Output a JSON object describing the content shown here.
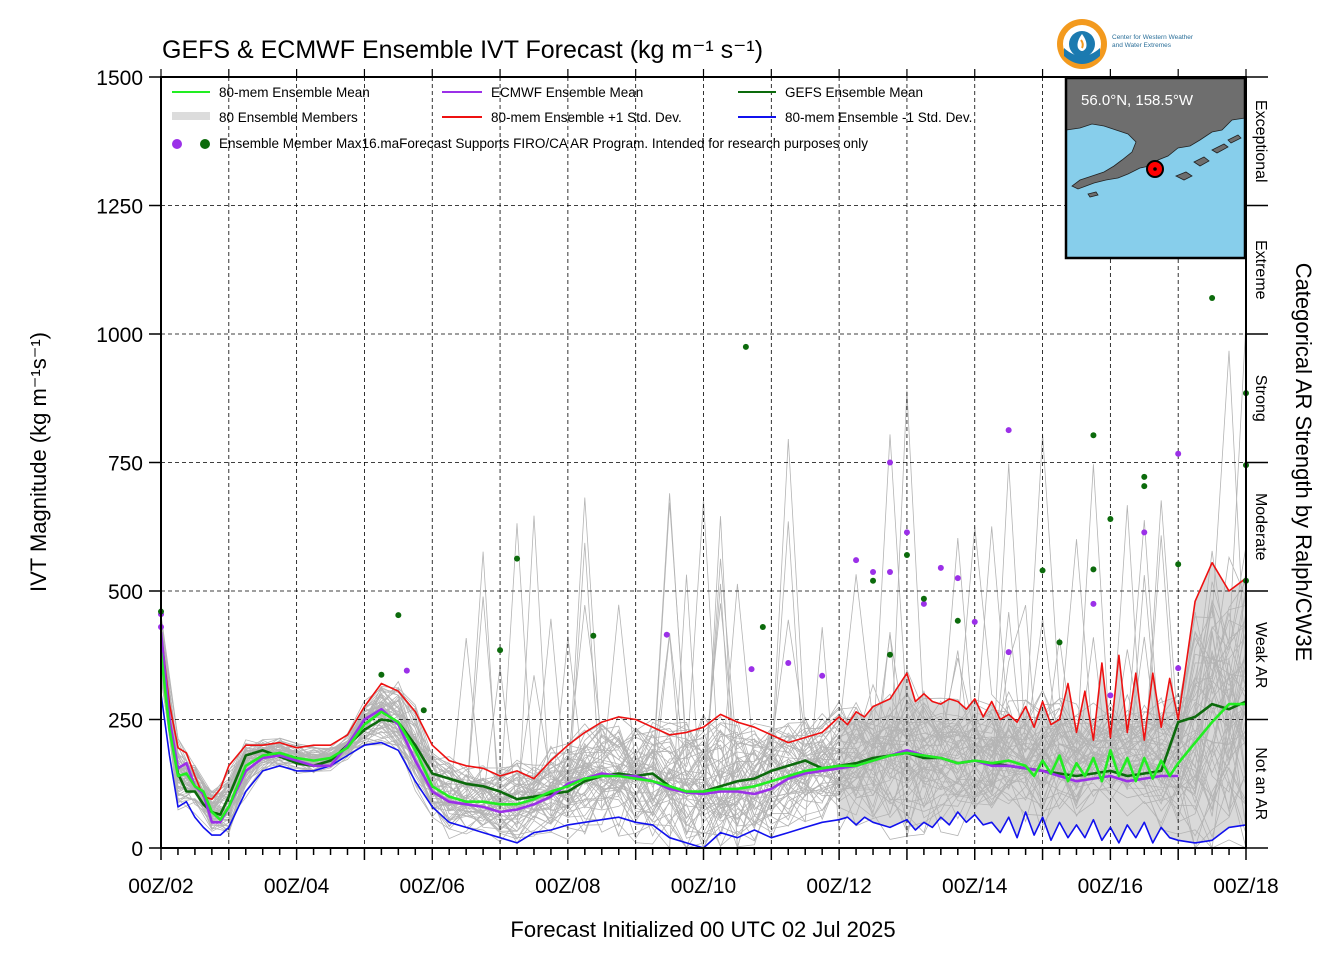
{
  "chart_data": {
    "type": "line",
    "title": "GEFS & ECMWF Ensemble IVT Forecast (kg m⁻¹ s⁻¹)",
    "xlabel": "Forecast Initialized 00 UTC 02 Jul 2025",
    "ylabel": "IVT Magnitude (kg m⁻¹s⁻¹)",
    "right_label": "Categorical AR Strength by Ralph/CW3E",
    "x_unit": "forecast hour",
    "xlim": [
      0,
      384
    ],
    "ylim": [
      0,
      1500
    ],
    "grid": true,
    "legend_placement": "top-left",
    "x_ticks": [
      {
        "hour": 0,
        "label": "00Z/02"
      },
      {
        "hour": 48,
        "label": "00Z/04"
      },
      {
        "hour": 96,
        "label": "00Z/06"
      },
      {
        "hour": 144,
        "label": "00Z/08"
      },
      {
        "hour": 192,
        "label": "00Z/10"
      },
      {
        "hour": 240,
        "label": "00Z/12"
      },
      {
        "hour": 288,
        "label": "00Z/14"
      },
      {
        "hour": 336,
        "label": "00Z/16"
      },
      {
        "hour": 384,
        "label": "00Z/18"
      }
    ],
    "y_ticks": [
      0,
      250,
      500,
      750,
      1000,
      1250,
      1500
    ],
    "categories": [
      {
        "label": "Not an AR",
        "from": 0,
        "to": 250
      },
      {
        "label": "Weak AR",
        "from": 250,
        "to": 500
      },
      {
        "label": "Moderate",
        "from": 500,
        "to": 750
      },
      {
        "label": "Strong",
        "from": 750,
        "to": 1000
      },
      {
        "label": "Extreme",
        "from": 1000,
        "to": 1250
      },
      {
        "label": "Exceptional",
        "from": 1250,
        "to": 1500
      }
    ],
    "legend": {
      "mean80": "80-mem Ensemble Mean",
      "members": "80 Ensemble Members",
      "dots": "Ensemble Member Max",
      "ecmwf": "ECMWF Ensemble Mean",
      "plus": "80-mem Ensemble +1 Std. Dev.",
      "gefs": "GEFS Ensemble Mean",
      "minus": "80-mem Ensemble -1 Std. Dev.",
      "note": "16.maForecast Supports FIRO/CA AR Program. Intended for research purposes only"
    },
    "series": [
      {
        "name": "80-mem Ensemble Mean",
        "color": "#22ee22",
        "x": [
          0,
          3,
          6,
          9,
          12,
          15,
          18,
          21,
          24,
          30,
          36,
          42,
          48,
          54,
          60,
          66,
          72,
          78,
          84,
          90,
          96,
          102,
          108,
          114,
          120,
          126,
          132,
          138,
          144,
          150,
          156,
          162,
          168,
          174,
          180,
          186,
          192,
          198,
          204,
          210,
          216,
          222,
          228,
          234,
          240,
          246,
          252,
          258,
          264,
          270,
          276,
          282,
          288,
          294,
          300,
          306,
          309,
          312,
          315,
          318,
          321,
          324,
          327,
          330,
          333,
          336,
          339,
          342,
          345,
          348,
          351,
          354,
          357,
          360,
          372,
          378,
          384
        ],
        "y": [
          380,
          230,
          140,
          145,
          120,
          110,
          70,
          55,
          80,
          160,
          180,
          185,
          175,
          170,
          175,
          195,
          240,
          265,
          245,
          190,
          120,
          100,
          90,
          90,
          85,
          85,
          95,
          110,
          120,
          135,
          140,
          140,
          135,
          130,
          120,
          110,
          110,
          115,
          115,
          120,
          130,
          140,
          150,
          155,
          160,
          160,
          170,
          180,
          185,
          180,
          175,
          165,
          170,
          165,
          170,
          160,
          140,
          170,
          145,
          180,
          130,
          165,
          140,
          175,
          130,
          190,
          140,
          175,
          130,
          175,
          135,
          170,
          140,
          165,
          245,
          280,
          280
        ]
      },
      {
        "name": "ECMWF Ensemble Mean",
        "color": "#9b30e8",
        "x": [
          0,
          3,
          6,
          9,
          12,
          15,
          18,
          21,
          24,
          30,
          36,
          42,
          48,
          54,
          60,
          66,
          72,
          78,
          84,
          90,
          96,
          102,
          108,
          114,
          120,
          126,
          132,
          138,
          144,
          150,
          156,
          162,
          168,
          174,
          180,
          186,
          192,
          198,
          204,
          210,
          216,
          222,
          228,
          234,
          240,
          246,
          252,
          258,
          264,
          270,
          276,
          282,
          288,
          294,
          300,
          306,
          312,
          318,
          324,
          330,
          336,
          342,
          348,
          354,
          360
        ],
        "y": [
          420,
          250,
          155,
          165,
          120,
          105,
          50,
          50,
          80,
          150,
          175,
          180,
          170,
          160,
          160,
          200,
          250,
          270,
          240,
          170,
          110,
          90,
          85,
          80,
          70,
          75,
          85,
          100,
          125,
          135,
          145,
          140,
          140,
          130,
          115,
          108,
          105,
          110,
          110,
          105,
          115,
          135,
          145,
          150,
          155,
          160,
          170,
          180,
          190,
          180,
          175,
          165,
          170,
          160,
          160,
          155,
          150,
          140,
          130,
          135,
          140,
          130,
          135,
          140,
          140
        ]
      },
      {
        "name": "GEFS Ensemble Mean",
        "color": "#0c6b0c",
        "x": [
          0,
          3,
          6,
          9,
          12,
          15,
          18,
          21,
          24,
          30,
          36,
          42,
          48,
          54,
          60,
          66,
          72,
          78,
          84,
          90,
          96,
          102,
          108,
          114,
          120,
          126,
          132,
          138,
          144,
          150,
          156,
          162,
          168,
          174,
          180,
          186,
          192,
          198,
          204,
          210,
          216,
          222,
          228,
          234,
          240,
          246,
          252,
          258,
          264,
          270,
          276,
          282,
          288,
          294,
          300,
          306,
          312,
          318,
          324,
          330,
          336,
          342,
          348,
          354,
          360,
          366,
          372,
          378,
          384
        ],
        "y": [
          400,
          235,
          145,
          110,
          110,
          85,
          70,
          65,
          100,
          180,
          190,
          178,
          165,
          160,
          170,
          200,
          230,
          250,
          245,
          200,
          145,
          135,
          125,
          120,
          110,
          95,
          100,
          105,
          110,
          130,
          140,
          145,
          140,
          145,
          120,
          108,
          110,
          120,
          130,
          135,
          150,
          160,
          170,
          155,
          160,
          165,
          175,
          180,
          185,
          175,
          175,
          165,
          170,
          165,
          160,
          155,
          150,
          145,
          140,
          145,
          150,
          140,
          145,
          150,
          245,
          255,
          280,
          270,
          285
        ]
      },
      {
        "name": "80-mem Ensemble +1 Std. Dev.",
        "color": "#ee1111",
        "x": [
          0,
          3,
          6,
          9,
          12,
          15,
          18,
          21,
          24,
          30,
          36,
          42,
          48,
          54,
          60,
          66,
          72,
          78,
          84,
          90,
          96,
          102,
          108,
          114,
          120,
          126,
          132,
          138,
          144,
          150,
          156,
          162,
          168,
          174,
          180,
          186,
          192,
          198,
          204,
          210,
          216,
          222,
          228,
          234,
          240,
          243,
          246,
          249,
          252,
          258,
          264,
          267,
          270,
          273,
          276,
          279,
          282,
          285,
          288,
          291,
          294,
          297,
          300,
          303,
          306,
          309,
          312,
          315,
          318,
          321,
          324,
          327,
          330,
          333,
          336,
          339,
          342,
          345,
          348,
          351,
          354,
          357,
          360,
          366,
          372,
          378,
          384
        ],
        "y": [
          420,
          280,
          195,
          185,
          140,
          100,
          95,
          115,
          160,
          200,
          200,
          205,
          195,
          200,
          200,
          220,
          275,
          320,
          305,
          265,
          200,
          170,
          160,
          155,
          140,
          150,
          135,
          170,
          200,
          225,
          245,
          255,
          250,
          235,
          220,
          225,
          235,
          260,
          245,
          235,
          220,
          205,
          215,
          225,
          255,
          240,
          265,
          255,
          275,
          290,
          340,
          285,
          300,
          285,
          280,
          290,
          285,
          270,
          290,
          255,
          285,
          250,
          260,
          245,
          275,
          235,
          285,
          240,
          250,
          320,
          225,
          305,
          210,
          360,
          215,
          375,
          225,
          340,
          210,
          340,
          235,
          330,
          250,
          480,
          555,
          500,
          525
        ]
      },
      {
        "name": "80-mem Ensemble -1 Std. Dev.",
        "color": "#1111ee",
        "x": [
          0,
          3,
          6,
          9,
          12,
          15,
          18,
          21,
          24,
          30,
          36,
          42,
          48,
          54,
          60,
          66,
          72,
          78,
          84,
          90,
          96,
          102,
          108,
          114,
          120,
          126,
          132,
          138,
          144,
          150,
          156,
          162,
          168,
          174,
          180,
          186,
          192,
          198,
          204,
          210,
          216,
          222,
          228,
          234,
          240,
          243,
          246,
          249,
          252,
          258,
          264,
          267,
          270,
          273,
          276,
          279,
          282,
          285,
          288,
          291,
          294,
          297,
          300,
          303,
          306,
          309,
          312,
          315,
          318,
          321,
          324,
          327,
          330,
          333,
          336,
          339,
          342,
          345,
          348,
          351,
          354,
          357,
          360,
          366,
          372,
          378,
          384
        ],
        "y": [
          300,
          180,
          80,
          90,
          60,
          40,
          25,
          25,
          40,
          110,
          150,
          160,
          150,
          150,
          160,
          180,
          200,
          205,
          190,
          130,
          80,
          50,
          40,
          30,
          20,
          10,
          30,
          35,
          45,
          50,
          55,
          60,
          50,
          45,
          20,
          10,
          0,
          30,
          20,
          35,
          20,
          30,
          40,
          50,
          55,
          60,
          45,
          60,
          50,
          40,
          55,
          35,
          50,
          40,
          60,
          45,
          70,
          50,
          65,
          45,
          50,
          30,
          60,
          20,
          70,
          25,
          60,
          15,
          50,
          20,
          45,
          20,
          55,
          15,
          40,
          10,
          45,
          20,
          50,
          10,
          40,
          20,
          15,
          10,
          15,
          40,
          45
        ]
      }
    ],
    "member_max_ecmwf": [
      {
        "x": 0,
        "y": 455
      },
      {
        "x": 0,
        "y": 430
      },
      {
        "x": 87,
        "y": 345
      },
      {
        "x": 179,
        "y": 415
      },
      {
        "x": 209,
        "y": 348
      },
      {
        "x": 222,
        "y": 360
      },
      {
        "x": 234,
        "y": 335
      },
      {
        "x": 246,
        "y": 560
      },
      {
        "x": 252,
        "y": 537
      },
      {
        "x": 258,
        "y": 537
      },
      {
        "x": 258,
        "y": 750
      },
      {
        "x": 264,
        "y": 614
      },
      {
        "x": 270,
        "y": 475
      },
      {
        "x": 276,
        "y": 545
      },
      {
        "x": 282,
        "y": 525
      },
      {
        "x": 288,
        "y": 440
      },
      {
        "x": 300,
        "y": 813
      },
      {
        "x": 300,
        "y": 381
      },
      {
        "x": 330,
        "y": 475
      },
      {
        "x": 336,
        "y": 297
      },
      {
        "x": 348,
        "y": 614
      },
      {
        "x": 360,
        "y": 767
      },
      {
        "x": 360,
        "y": 350
      }
    ],
    "member_max_gefs": [
      {
        "x": 0,
        "y": 460
      },
      {
        "x": 78,
        "y": 337
      },
      {
        "x": 84,
        "y": 453
      },
      {
        "x": 93,
        "y": 268
      },
      {
        "x": 120,
        "y": 385
      },
      {
        "x": 126,
        "y": 563
      },
      {
        "x": 153,
        "y": 413
      },
      {
        "x": 207,
        "y": 975
      },
      {
        "x": 213,
        "y": 430
      },
      {
        "x": 252,
        "y": 520
      },
      {
        "x": 258,
        "y": 376
      },
      {
        "x": 264,
        "y": 570
      },
      {
        "x": 270,
        "y": 485
      },
      {
        "x": 282,
        "y": 442
      },
      {
        "x": 312,
        "y": 540
      },
      {
        "x": 318,
        "y": 400
      },
      {
        "x": 330,
        "y": 542
      },
      {
        "x": 330,
        "y": 803
      },
      {
        "x": 336,
        "y": 640
      },
      {
        "x": 348,
        "y": 722
      },
      {
        "x": 348,
        "y": 704
      },
      {
        "x": 360,
        "y": 552
      },
      {
        "x": 372,
        "y": 1070
      },
      {
        "x": 384,
        "y": 885
      },
      {
        "x": 384,
        "y": 745
      },
      {
        "x": 384,
        "y": 520
      }
    ]
  },
  "inset_map": {
    "location_label": "56.0°N, 158.5°W",
    "ocean_color": "#87ceeb",
    "land_color": "#6e6e6e",
    "marker_color": "#ff0000"
  },
  "logo": {
    "name": "Center for Western Weather and Water Extremes",
    "line1": "Center for Western Weather",
    "line2": "and Water Extremes"
  }
}
